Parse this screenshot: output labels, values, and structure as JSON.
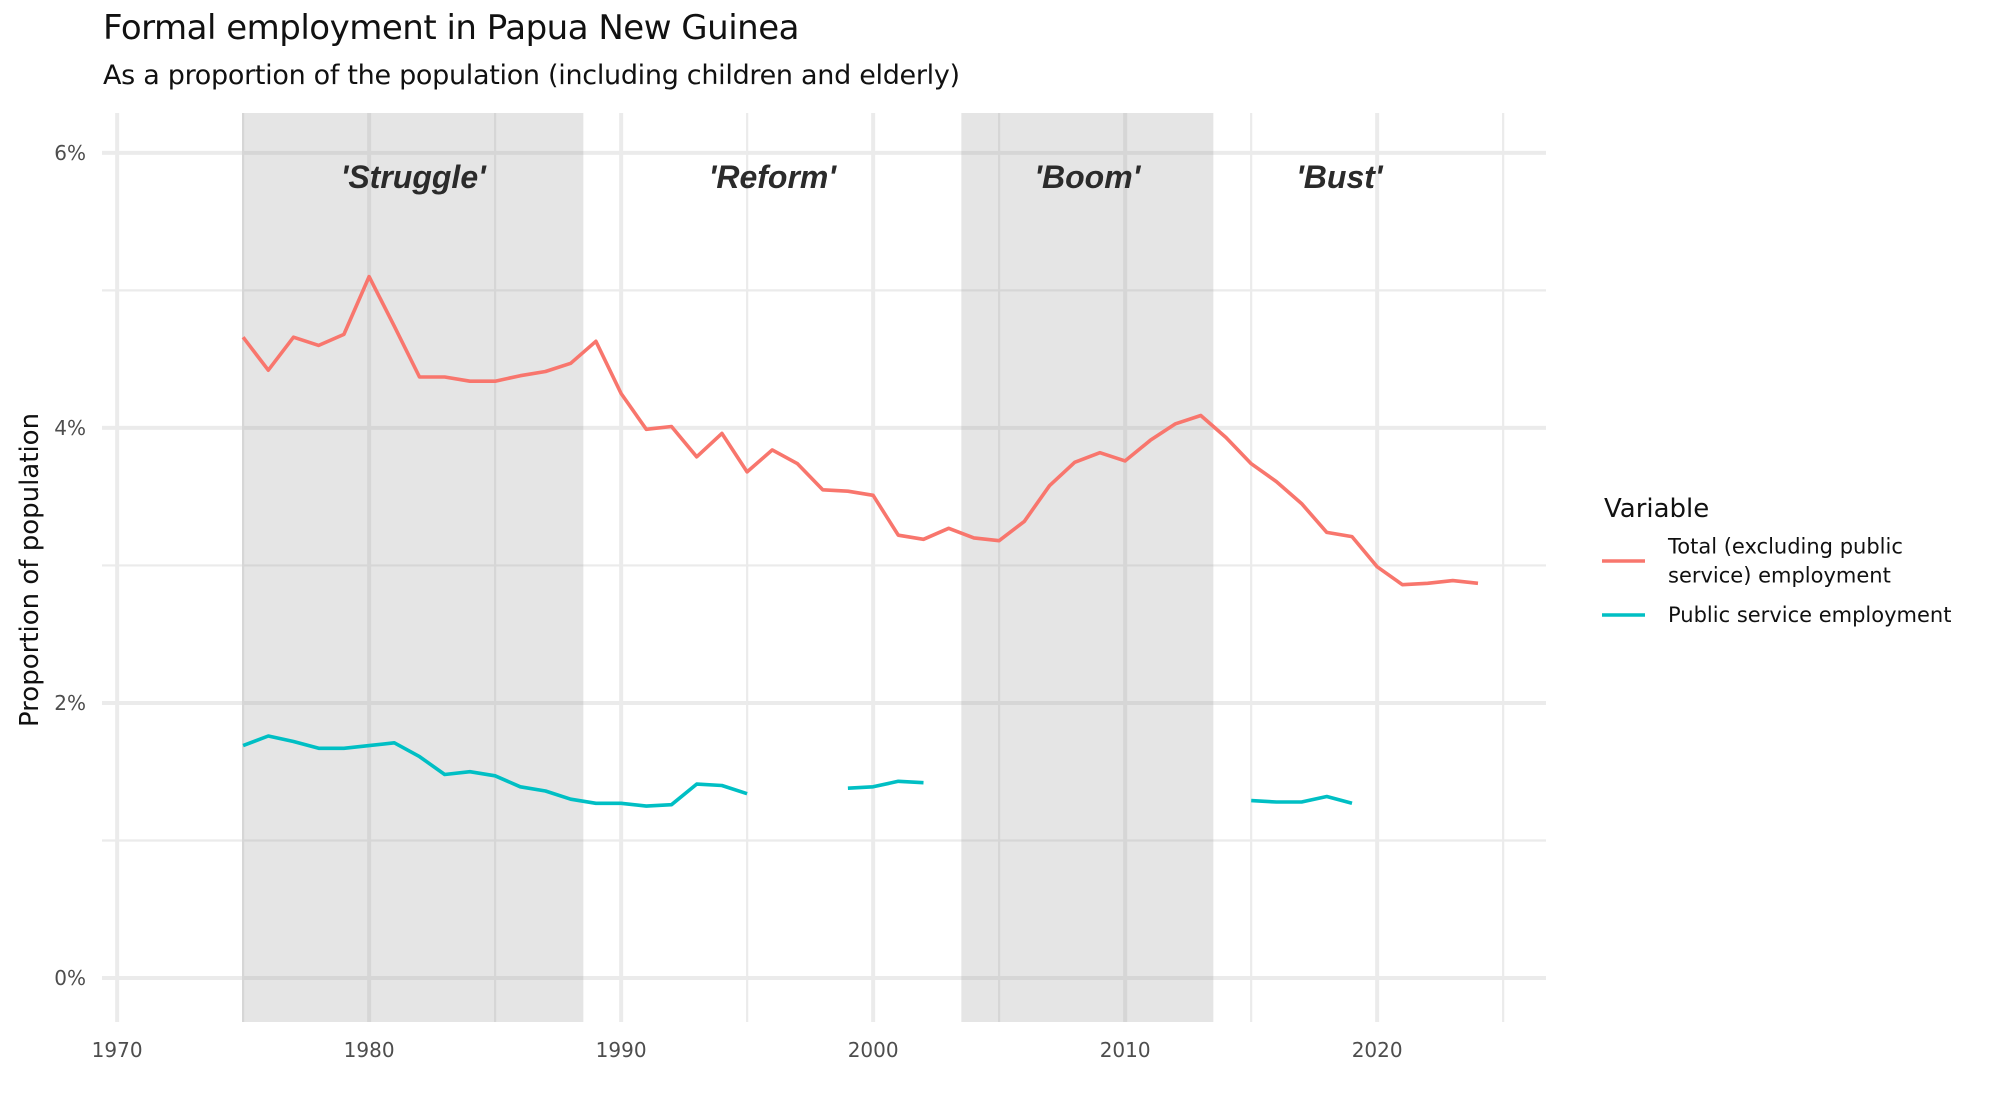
{
  "chart_data": {
    "type": "line",
    "title": "Formal employment in Papua New Guinea",
    "subtitle": "As a proportion of the population (including children and elderly)",
    "xlabel": "",
    "ylabel": "Proportion of population",
    "xlim": [
      1969.4,
      2026.7
    ],
    "ylim": [
      -0.32,
      6.29
    ],
    "x_ticks": [
      1970,
      1980,
      1990,
      2000,
      2010,
      2020
    ],
    "x_minor_ticks": [
      1975,
      1985,
      1995,
      2005,
      2015,
      2025
    ],
    "y_ticks": [
      {
        "value": 0,
        "label": "0%"
      },
      {
        "value": 2,
        "label": "2%"
      },
      {
        "value": 4,
        "label": "4%"
      },
      {
        "value": 6,
        "label": "6%"
      }
    ],
    "y_minor_ticks": [
      1,
      3,
      5
    ],
    "grid": true,
    "periods": [
      {
        "label": "'Struggle'",
        "start": 1975,
        "end": 1988.5,
        "shaded": true
      },
      {
        "label": "'Reform'",
        "start": 1988.5,
        "end": 2003.5,
        "shaded": false
      },
      {
        "label": "'Boom'",
        "start": 2003.5,
        "end": 2013.5,
        "shaded": true
      },
      {
        "label": "'Bust'",
        "start": 2013.5,
        "end": 2023.5,
        "shaded": false
      }
    ],
    "legend": {
      "title": "Variable",
      "position": "right"
    },
    "series": [
      {
        "name": "Total (excluding public service) employment",
        "legend_lines": [
          "Total (excluding public",
          "service) employment"
        ],
        "color": "#F8766D",
        "points": [
          [
            1975,
            4.66
          ],
          [
            1976,
            4.42
          ],
          [
            1977,
            4.66
          ],
          [
            1978,
            4.6
          ],
          [
            1979,
            4.68
          ],
          [
            1980,
            5.1
          ],
          [
            1981,
            4.74
          ],
          [
            1982,
            4.37
          ],
          [
            1983,
            4.37
          ],
          [
            1984,
            4.34
          ],
          [
            1985,
            4.34
          ],
          [
            1986,
            4.38
          ],
          [
            1987,
            4.41
          ],
          [
            1988,
            4.47
          ],
          [
            1989,
            4.63
          ],
          [
            1990,
            4.25
          ],
          [
            1991,
            3.99
          ],
          [
            1992,
            4.01
          ],
          [
            1993,
            3.79
          ],
          [
            1994,
            3.96
          ],
          [
            1995,
            3.68
          ],
          [
            1996,
            3.84
          ],
          [
            1997,
            3.74
          ],
          [
            1998,
            3.55
          ],
          [
            1999,
            3.54
          ],
          [
            2000,
            3.51
          ],
          [
            2001,
            3.22
          ],
          [
            2002,
            3.19
          ],
          [
            2003,
            3.27
          ],
          [
            2004,
            3.2
          ],
          [
            2005,
            3.18
          ],
          [
            2006,
            3.32
          ],
          [
            2007,
            3.58
          ],
          [
            2008,
            3.75
          ],
          [
            2009,
            3.82
          ],
          [
            2010,
            3.76
          ],
          [
            2011,
            3.91
          ],
          [
            2012,
            4.03
          ],
          [
            2013,
            4.09
          ],
          [
            2014,
            3.93
          ],
          [
            2015,
            3.74
          ],
          [
            2016,
            3.61
          ],
          [
            2017,
            3.45
          ],
          [
            2018,
            3.24
          ],
          [
            2019,
            3.21
          ],
          [
            2020,
            2.99
          ],
          [
            2021,
            2.86
          ],
          [
            2022,
            2.87
          ],
          [
            2023,
            2.89
          ],
          [
            2024,
            2.87
          ]
        ]
      },
      {
        "name": "Public service employment",
        "legend_lines": [
          "Public service employment"
        ],
        "color": "#00BFC4",
        "points": [
          [
            1975,
            1.69
          ],
          [
            1976,
            1.76
          ],
          [
            1977,
            1.72
          ],
          [
            1978,
            1.67
          ],
          [
            1979,
            1.67
          ],
          [
            1980,
            1.69
          ],
          [
            1981,
            1.71
          ],
          [
            1982,
            1.61
          ],
          [
            1983,
            1.48
          ],
          [
            1984,
            1.5
          ],
          [
            1985,
            1.47
          ],
          [
            1986,
            1.39
          ],
          [
            1987,
            1.36
          ],
          [
            1988,
            1.3
          ],
          [
            1989,
            1.27
          ],
          [
            1990,
            1.27
          ],
          [
            1991,
            1.25
          ],
          [
            1992,
            1.26
          ],
          [
            1993,
            1.41
          ],
          [
            1994,
            1.4
          ],
          [
            1995,
            1.34
          ],
          [
            1996,
            null
          ],
          [
            1997,
            null
          ],
          [
            1998,
            null
          ],
          [
            1999,
            1.38
          ],
          [
            2000,
            1.39
          ],
          [
            2001,
            1.43
          ],
          [
            2002,
            1.42
          ],
          [
            2003,
            null
          ],
          [
            2004,
            null
          ],
          [
            2005,
            null
          ],
          [
            2006,
            null
          ],
          [
            2007,
            null
          ],
          [
            2008,
            null
          ],
          [
            2009,
            null
          ],
          [
            2010,
            null
          ],
          [
            2011,
            null
          ],
          [
            2012,
            null
          ],
          [
            2013,
            null
          ],
          [
            2014,
            null
          ],
          [
            2015,
            1.29
          ],
          [
            2016,
            1.28
          ],
          [
            2017,
            1.28
          ],
          [
            2018,
            1.32
          ],
          [
            2019,
            1.27
          ]
        ]
      }
    ]
  },
  "colors": {
    "panel_shade": "#E5E5E5",
    "grid_major": "#EBEBEB",
    "grid_major_on_shade": "#D6D6D6"
  }
}
